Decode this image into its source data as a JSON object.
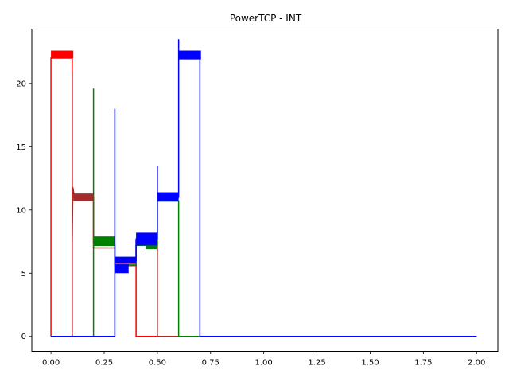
{
  "chart_data": {
    "type": "line",
    "title": "PowerTCP - INT",
    "xlabel": "",
    "ylabel": "",
    "xlim": [
      -0.09,
      2.1
    ],
    "ylim": [
      -1.18,
      24.3
    ],
    "x_ticks": [
      0.0,
      0.25,
      0.5,
      0.75,
      1.0,
      1.25,
      1.5,
      1.75,
      2.0
    ],
    "x_tick_labels": [
      "0.00",
      "0.25",
      "0.50",
      "0.75",
      "1.00",
      "1.25",
      "1.50",
      "1.75",
      "2.00"
    ],
    "y_ticks": [
      0,
      5,
      10,
      15,
      20
    ],
    "y_tick_labels": [
      "0",
      "5",
      "10",
      "15",
      "20"
    ],
    "grid": false,
    "legend": "none",
    "series": [
      {
        "color": "#ff0000",
        "points": [
          [
            0.0,
            0
          ],
          [
            0.0,
            22.0
          ],
          [
            0.1,
            22.0
          ],
          [
            0.1,
            11.0
          ],
          [
            0.2,
            11.0
          ],
          [
            0.2,
            7.3
          ],
          [
            0.3,
            7.3
          ],
          [
            0.3,
            5.8
          ],
          [
            0.4,
            5.8
          ],
          [
            0.4,
            0
          ],
          [
            2.0,
            0
          ]
        ],
        "bands": [
          {
            "x": [
              0.0,
              0.105
            ],
            "y": [
              22.0,
              22.6
            ]
          }
        ]
      },
      {
        "color": "#a52a2a",
        "points": [
          [
            0.0,
            0
          ],
          [
            0.1,
            0
          ],
          [
            0.1,
            21.0
          ],
          [
            0.1,
            7.5
          ],
          [
            0.103,
            11.8
          ],
          [
            0.11,
            11.0
          ],
          [
            0.2,
            11.0
          ],
          [
            0.2,
            7.0
          ],
          [
            0.3,
            7.0
          ],
          [
            0.3,
            5.6
          ],
          [
            0.4,
            5.6
          ],
          [
            0.4,
            7.5
          ],
          [
            0.5,
            7.5
          ],
          [
            0.5,
            0
          ],
          [
            2.0,
            0
          ]
        ],
        "bands": [
          {
            "x": [
              0.105,
              0.2
            ],
            "y": [
              10.7,
              11.3
            ]
          }
        ]
      },
      {
        "color": "#008000",
        "points": [
          [
            0.0,
            0
          ],
          [
            0.2,
            0
          ],
          [
            0.2,
            19.6
          ],
          [
            0.2,
            7.2
          ],
          [
            0.3,
            7.2
          ],
          [
            0.3,
            5.7
          ],
          [
            0.4,
            5.7
          ],
          [
            0.4,
            7.2
          ],
          [
            0.5,
            7.2
          ],
          [
            0.5,
            10.7
          ],
          [
            0.6,
            10.7
          ],
          [
            0.6,
            0
          ],
          [
            2.0,
            0
          ]
        ],
        "bands": [
          {
            "x": [
              0.2,
              0.3
            ],
            "y": [
              7.2,
              7.9
            ]
          },
          {
            "x": [
              0.445,
              0.5
            ],
            "y": [
              6.9,
              7.5
            ]
          }
        ]
      },
      {
        "color": "#0000ff",
        "points": [
          [
            0.0,
            0
          ],
          [
            0.3,
            0
          ],
          [
            0.3,
            18.0
          ],
          [
            0.3,
            2.2
          ],
          [
            0.3,
            6.0
          ],
          [
            0.4,
            6.0
          ],
          [
            0.4,
            7.7
          ],
          [
            0.5,
            7.7
          ],
          [
            0.5,
            13.5
          ],
          [
            0.5,
            11.0
          ],
          [
            0.6,
            11.0
          ],
          [
            0.6,
            23.5
          ],
          [
            0.6,
            22.0
          ],
          [
            0.7,
            22.0
          ],
          [
            0.7,
            0
          ],
          [
            2.0,
            0
          ]
        ],
        "bands": [
          {
            "x": [
              0.3,
              0.4
            ],
            "y": [
              5.8,
              6.3
            ]
          },
          {
            "x": [
              0.3,
              0.365
            ],
            "y": [
              5.0,
              5.7
            ]
          },
          {
            "x": [
              0.4,
              0.5
            ],
            "y": [
              7.2,
              8.2
            ]
          },
          {
            "x": [
              0.5,
              0.6
            ],
            "y": [
              10.7,
              11.4
            ]
          },
          {
            "x": [
              0.6,
              0.705
            ],
            "y": [
              21.9,
              22.6
            ]
          }
        ]
      }
    ]
  }
}
